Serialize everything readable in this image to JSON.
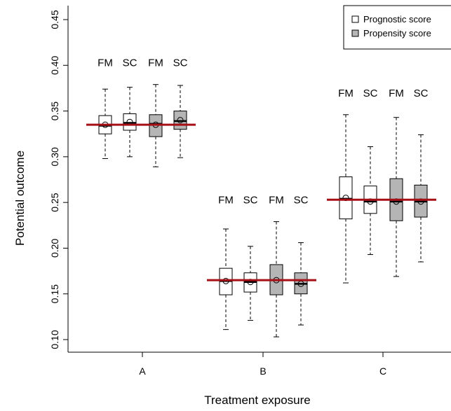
{
  "chart_data": {
    "type": "boxplot",
    "title": "",
    "xlabel": "Treatment exposure",
    "ylabel": "Potential outcome",
    "ylim": [
      0.1,
      0.45
    ],
    "yticks": [
      "0.10",
      "0.15",
      "0.20",
      "0.25",
      "0.30",
      "0.35",
      "0.40",
      "0.45"
    ],
    "categories": [
      "A",
      "B",
      "C"
    ],
    "legend": {
      "position": "top-right",
      "entries": [
        {
          "name": "Prognostic score",
          "fill": "#ffffff"
        },
        {
          "name": "Propensity score",
          "fill": "#b5b5b5"
        }
      ]
    },
    "colors": {
      "reference_line": "#a50f15",
      "propensity_fill": "#b5b5b5",
      "prognostic_fill": "#ffffff"
    },
    "groups": [
      {
        "category": "A",
        "reference_value": 0.335,
        "boxes": [
          {
            "label": "FM",
            "score": "Prognostic score",
            "whisker_low": 0.298,
            "q1": 0.325,
            "median": 0.334,
            "q3": 0.345,
            "whisker_high": 0.374,
            "mean": 0.335
          },
          {
            "label": "SC",
            "score": "Prognostic score",
            "whisker_low": 0.3,
            "q1": 0.329,
            "median": 0.337,
            "q3": 0.347,
            "whisker_high": 0.376,
            "mean": 0.338
          },
          {
            "label": "FM",
            "score": "Propensity score",
            "whisker_low": 0.289,
            "q1": 0.322,
            "median": 0.336,
            "q3": 0.346,
            "whisker_high": 0.379,
            "mean": 0.335
          },
          {
            "label": "SC",
            "score": "Propensity score",
            "whisker_low": 0.299,
            "q1": 0.33,
            "median": 0.339,
            "q3": 0.35,
            "whisker_high": 0.378,
            "mean": 0.34
          }
        ]
      },
      {
        "category": "B",
        "reference_value": 0.165,
        "boxes": [
          {
            "label": "FM",
            "score": "Prognostic score",
            "whisker_low": 0.111,
            "q1": 0.149,
            "median": 0.164,
            "q3": 0.178,
            "whisker_high": 0.221,
            "mean": 0.164
          },
          {
            "label": "SC",
            "score": "Prognostic score",
            "whisker_low": 0.121,
            "q1": 0.152,
            "median": 0.163,
            "q3": 0.173,
            "whisker_high": 0.202,
            "mean": 0.163
          },
          {
            "label": "FM",
            "score": "Propensity score",
            "whisker_low": 0.103,
            "q1": 0.149,
            "median": 0.165,
            "q3": 0.182,
            "whisker_high": 0.229,
            "mean": 0.165
          },
          {
            "label": "SC",
            "score": "Propensity score",
            "whisker_low": 0.116,
            "q1": 0.15,
            "median": 0.161,
            "q3": 0.173,
            "whisker_high": 0.206,
            "mean": 0.161
          }
        ]
      },
      {
        "category": "C",
        "reference_value": 0.253,
        "boxes": [
          {
            "label": "FM",
            "score": "Prognostic score",
            "whisker_low": 0.162,
            "q1": 0.232,
            "median": 0.254,
            "q3": 0.278,
            "whisker_high": 0.346,
            "mean": 0.255
          },
          {
            "label": "SC",
            "score": "Prognostic score",
            "whisker_low": 0.193,
            "q1": 0.238,
            "median": 0.251,
            "q3": 0.268,
            "whisker_high": 0.311,
            "mean": 0.251
          },
          {
            "label": "FM",
            "score": "Propensity score",
            "whisker_low": 0.169,
            "q1": 0.23,
            "median": 0.251,
            "q3": 0.276,
            "whisker_high": 0.343,
            "mean": 0.251
          },
          {
            "label": "SC",
            "score": "Propensity score",
            "whisker_low": 0.185,
            "q1": 0.234,
            "median": 0.251,
            "q3": 0.269,
            "whisker_high": 0.324,
            "mean": 0.251
          }
        ]
      }
    ]
  }
}
